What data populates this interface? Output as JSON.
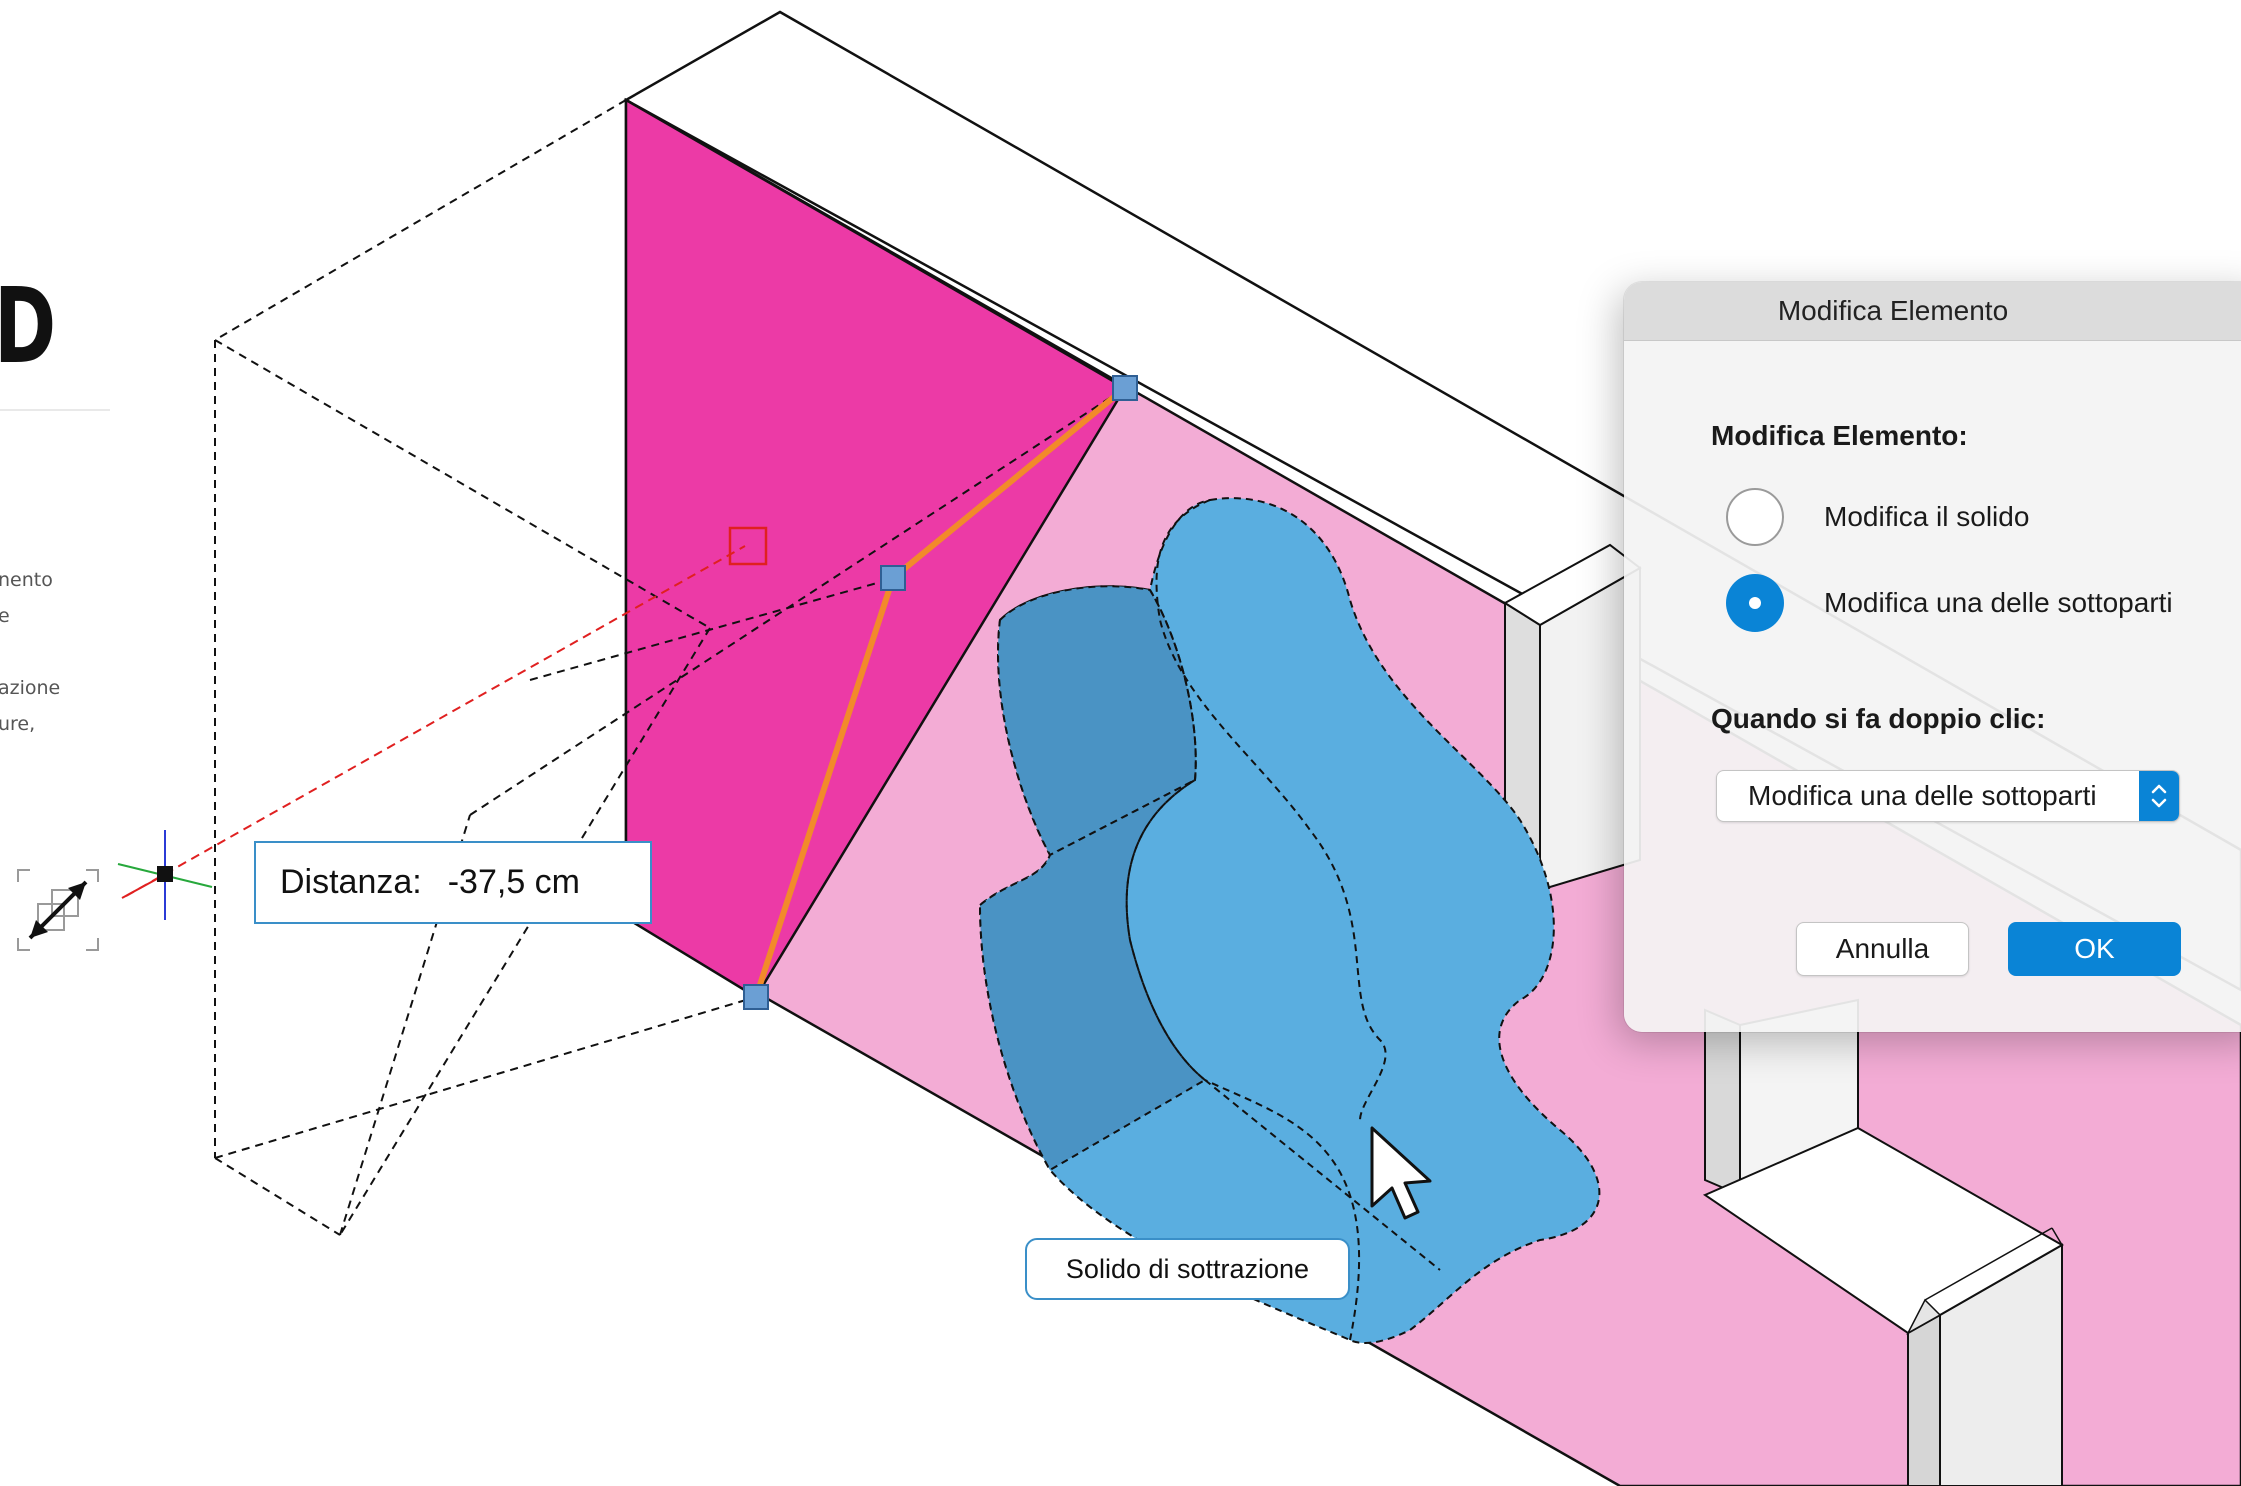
{
  "side_panel": {
    "title": "D",
    "lines": [
      "nento",
      "e",
      "azione",
      "ure,"
    ]
  },
  "distance": {
    "label": "Distanza:",
    "value": "-37,5 cm"
  },
  "solid_label": "Solido di sottrazione",
  "dialog": {
    "window_title": "Modifica Elemento",
    "heading": "Modifica Elemento:",
    "options": [
      {
        "label": "Modifica il solido",
        "selected": false
      },
      {
        "label": "Modifica una delle sottoparti",
        "selected": true
      }
    ],
    "double_click_heading": "Quando si fa doppio clic:",
    "double_click_value": "Modifica una delle sottoparti",
    "cancel_label": "Annulla",
    "ok_label": "OK"
  },
  "colors": {
    "magenta_face": "#ec3aa6",
    "pink_face": "#f3acd5",
    "subtraction_solid": "#5aaee0",
    "accent": "#0a84d6",
    "edge_highlight": "#f28a2a"
  }
}
